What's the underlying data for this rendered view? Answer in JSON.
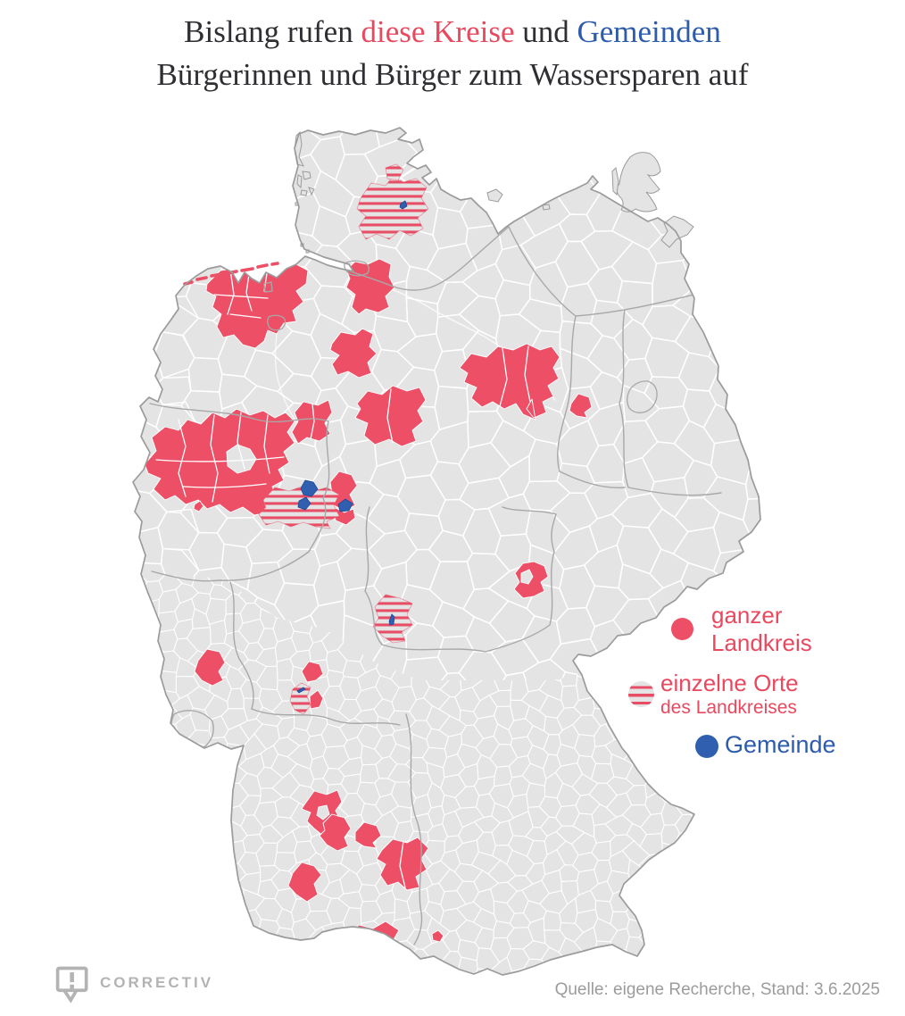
{
  "title": {
    "prefix": "Bislang rufen ",
    "kreise": "diese Kreise",
    "conj": " und ",
    "gemeinden": "Gemeinden",
    "line2": "Bürgerinnen und Bürger zum Wassersparen auf"
  },
  "legend": {
    "full": {
      "line1": "ganzer",
      "line2": "Landkreis"
    },
    "partial": {
      "line1": "einzelne Orte",
      "line2": "des Landkreises"
    },
    "municipality": {
      "label": "Gemeinde"
    }
  },
  "source": {
    "text": "Quelle: eigene Recherche, Stand: 3.6.2025"
  },
  "logo": {
    "text": "CORRECTIV"
  },
  "map": {
    "colors": {
      "land": "#e4e4e5",
      "district_border": "#ffffff",
      "state_border": "#a8a8a8",
      "outline": "#9b9b9b",
      "pink": "#ed4f66",
      "stripe": "#e74e66",
      "pink_text": "#e8495f",
      "blue": "#2f5fae",
      "blue_border": "#1d4894",
      "blue_text": "#2d5cac",
      "title": "#2e2e33",
      "logo": "#b3b3b3",
      "source": "#9b9b9b"
    },
    "marker_types": [
      "ganzer Landkreis",
      "einzelne Orte des Landkreises",
      "Gemeinde"
    ]
  }
}
